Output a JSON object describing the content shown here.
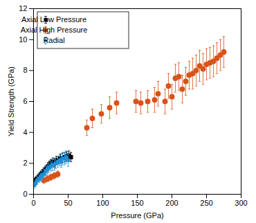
{
  "chart_data": {
    "type": "scatter",
    "x_label": "Pressure (GPa)",
    "y_label": "Yield Strength (GPa)",
    "xlim": [
      0,
      300
    ],
    "xticks": [
      0,
      50,
      100,
      150,
      200,
      250,
      300
    ],
    "ylim": [
      0,
      12
    ],
    "yticks": [
      0,
      2,
      4,
      6,
      8,
      10,
      12
    ],
    "grid": false,
    "legend": "top-left",
    "series": [
      {
        "name": "Axial Low Pressure",
        "color": "#000000",
        "marker": "square",
        "x": [
          2,
          3,
          5,
          7,
          9,
          11,
          13,
          15,
          17,
          19,
          21,
          23,
          25,
          28,
          30,
          33,
          36,
          39,
          42,
          45,
          48,
          51,
          54
        ],
        "values": [
          0.8,
          0.9,
          1.0,
          1.1,
          1.2,
          1.3,
          1.4,
          1.5,
          1.6,
          1.7,
          1.8,
          1.9,
          2.0,
          2.1,
          2.0,
          2.2,
          2.2,
          2.3,
          2.35,
          2.4,
          2.45,
          2.5,
          2.4
        ],
        "errors": [
          0.15,
          0.15,
          0.15,
          0.2,
          0.2,
          0.2,
          0.2,
          0.2,
          0.2,
          0.2,
          0.25,
          0.25,
          0.25,
          0.25,
          0.25,
          0.25,
          0.25,
          0.3,
          0.3,
          0.3,
          0.3,
          0.3,
          0.3
        ]
      },
      {
        "name": "Axial High Pressure",
        "color": "#d95319",
        "marker": "circle",
        "x": [
          15,
          20,
          25,
          30,
          35,
          77,
          85,
          98,
          110,
          120,
          148,
          155,
          165,
          175,
          180,
          190,
          195,
          200,
          205,
          210,
          215,
          220,
          225,
          230,
          235,
          240,
          245,
          250,
          255,
          260,
          265,
          270,
          275
        ],
        "values": [
          0.9,
          1.0,
          1.1,
          1.2,
          1.3,
          4.3,
          4.9,
          5.2,
          5.6,
          5.9,
          6.0,
          5.9,
          6.0,
          6.1,
          6.5,
          6.0,
          7.0,
          6.3,
          7.5,
          7.6,
          6.8,
          7.3,
          7.7,
          7.8,
          8.0,
          8.3,
          8.1,
          8.4,
          8.5,
          8.6,
          8.8,
          9.0,
          9.2
        ],
        "errors": [
          0.2,
          0.2,
          0.2,
          0.2,
          0.2,
          0.5,
          0.6,
          0.6,
          0.7,
          0.7,
          0.7,
          0.7,
          0.7,
          0.8,
          0.8,
          0.8,
          0.8,
          0.8,
          0.9,
          0.9,
          0.9,
          0.9,
          0.9,
          1.0,
          1.0,
          1.0,
          1.0,
          1.0,
          1.0,
          1.0,
          1.0,
          1.0,
          1.0
        ]
      },
      {
        "name": "Radial",
        "color": "#1f8fd6",
        "marker": "dot",
        "x": [
          1,
          3,
          5,
          8,
          10,
          12,
          15,
          18,
          20,
          22,
          25,
          27,
          30,
          32,
          35,
          38,
          40,
          42,
          45,
          47,
          50
        ],
        "values": [
          0.6,
          0.7,
          0.9,
          1.0,
          1.1,
          1.2,
          1.3,
          1.5,
          1.6,
          1.7,
          1.8,
          1.9,
          1.9,
          2.0,
          2.1,
          2.2,
          2.1,
          2.3,
          2.3,
          2.4,
          2.2
        ],
        "errors": [
          0.2,
          0.2,
          0.25,
          0.25,
          0.25,
          0.3,
          0.3,
          0.3,
          0.3,
          0.3,
          0.3,
          0.35,
          0.35,
          0.35,
          0.35,
          0.35,
          0.35,
          0.4,
          0.4,
          0.4,
          0.4
        ]
      }
    ]
  }
}
